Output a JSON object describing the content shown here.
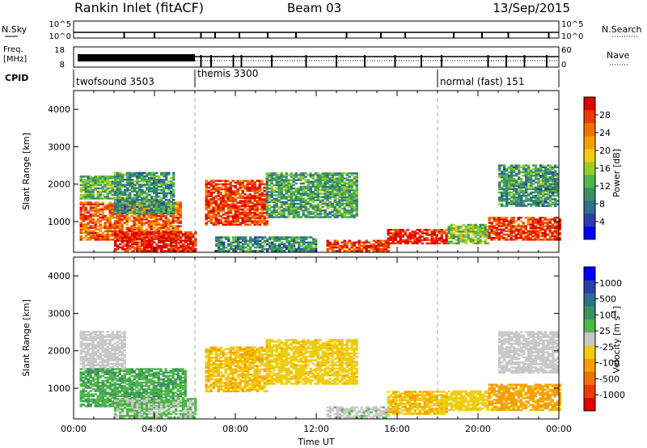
{
  "header": {
    "station": "Rankin Inlet (fitACF)",
    "beam": "Beam 03",
    "date": "13/Sep/2015"
  },
  "status_panels": {
    "nsky": {
      "label": "N.Sky",
      "ticks": [
        "10^5",
        "10^0"
      ]
    },
    "freq": {
      "label_line1": "Freq.",
      "label_line2": "[MHz]",
      "ticks": [
        "18",
        "8"
      ]
    },
    "nsearch": {
      "label": "N.Search",
      "ticks": [
        "10^5",
        "10^0"
      ]
    },
    "nave": {
      "label": "Nave",
      "ticks": [
        "60",
        "0"
      ]
    },
    "cpid": {
      "label": "CPID",
      "modes": [
        {
          "name": "twofsound 3503",
          "start_h": 0,
          "end_h": 6
        },
        {
          "name": "themis 3300",
          "start_h": 6,
          "end_h": 18
        },
        {
          "name": "normal (fast) 151",
          "start_h": 18,
          "end_h": 24
        }
      ]
    }
  },
  "chart_data": [
    {
      "type": "heatmap",
      "quantity": "power",
      "xlabel": "",
      "ylabel": "Slant Range [km]",
      "xlim": [
        0,
        24
      ],
      "ylim": [
        180,
        4500
      ],
      "yticks": [
        "4000",
        "3000",
        "2000",
        "1000"
      ],
      "colorbar": {
        "label": "Power [dB]",
        "ticks": [
          "28",
          "24",
          "20",
          "16",
          "12",
          "8",
          "4"
        ],
        "range": [
          0,
          30
        ],
        "colors": [
          "#0000ff",
          "#2a3da8",
          "#2e6f8e",
          "#3a9060",
          "#4eb848",
          "#9ccc2a",
          "#f0cc10",
          "#f5a000",
          "#f27000",
          "#ee3a00",
          "#e00000"
        ]
      },
      "regions": [
        {
          "t": [
            0.3,
            2.2
          ],
          "r": [
            1600,
            2200
          ],
          "v": 12
        },
        {
          "t": [
            0.3,
            5.3
          ],
          "r": [
            500,
            1500
          ],
          "v": 24
        },
        {
          "t": [
            2.0,
            6.0
          ],
          "r": [
            200,
            700
          ],
          "v": 28
        },
        {
          "t": [
            2.0,
            5.0
          ],
          "r": [
            1200,
            2300
          ],
          "v": 10
        },
        {
          "t": [
            6.5,
            9.5
          ],
          "r": [
            900,
            2100
          ],
          "v": 26
        },
        {
          "t": [
            7.0,
            12.0
          ],
          "r": [
            200,
            600
          ],
          "v": 9
        },
        {
          "t": [
            9.5,
            14.0
          ],
          "r": [
            1100,
            2300
          ],
          "v": 11
        },
        {
          "t": [
            12.5,
            15.5
          ],
          "r": [
            200,
            500
          ],
          "v": 26
        },
        {
          "t": [
            15.5,
            18.5
          ],
          "r": [
            400,
            800
          ],
          "v": 28
        },
        {
          "t": [
            18.5,
            20.5
          ],
          "r": [
            400,
            900
          ],
          "v": 14
        },
        {
          "t": [
            20.5,
            24.0
          ],
          "r": [
            500,
            1100
          ],
          "v": 26
        },
        {
          "t": [
            21.0,
            24.0
          ],
          "r": [
            1400,
            2500
          ],
          "v": 10
        }
      ]
    },
    {
      "type": "heatmap",
      "quantity": "velocity",
      "xlabel": "Time UT",
      "ylabel": "Slant Range [km]",
      "xlim": [
        0,
        24
      ],
      "ylim": [
        180,
        4500
      ],
      "xticks": [
        "00:00",
        "04:00",
        "08:00",
        "12:00",
        "16:00",
        "20:00",
        "00:00"
      ],
      "yticks": [
        "4000",
        "3000",
        "2000",
        "1000"
      ],
      "colorbar": {
        "label": "Velocity [m s^-1]",
        "ticks": [
          "1000",
          "500",
          "100",
          "25",
          "-25",
          "-100",
          "-500",
          "-1000"
        ],
        "range": [
          -1200,
          1200
        ],
        "colors": [
          "#e00000",
          "#ee3a00",
          "#f27000",
          "#f5a000",
          "#f0cc10",
          "#c8c8c8",
          "#4eb848",
          "#3a9060",
          "#2e6f8e",
          "#2a3da8",
          "#0000ff"
        ]
      },
      "regions": [
        {
          "t": [
            0.3,
            2.5
          ],
          "r": [
            1500,
            2500
          ],
          "v": 0
        },
        {
          "t": [
            0.3,
            5.5
          ],
          "r": [
            500,
            1500
          ],
          "v": 300
        },
        {
          "t": [
            2.0,
            6.0
          ],
          "r": [
            200,
            700
          ],
          "v": 120
        },
        {
          "t": [
            6.5,
            9.5
          ],
          "r": [
            900,
            2100
          ],
          "v": -300
        },
        {
          "t": [
            9.5,
            14.0
          ],
          "r": [
            1100,
            2300
          ],
          "v": -250
        },
        {
          "t": [
            12.5,
            15.5
          ],
          "r": [
            200,
            500
          ],
          "v": 60
        },
        {
          "t": [
            15.5,
            18.5
          ],
          "r": [
            300,
            900
          ],
          "v": -300
        },
        {
          "t": [
            18.5,
            20.5
          ],
          "r": [
            400,
            900
          ],
          "v": -200
        },
        {
          "t": [
            20.5,
            24.0
          ],
          "r": [
            400,
            1100
          ],
          "v": -400
        },
        {
          "t": [
            21.0,
            24.0
          ],
          "r": [
            1400,
            2500
          ],
          "v": 0
        }
      ]
    }
  ]
}
